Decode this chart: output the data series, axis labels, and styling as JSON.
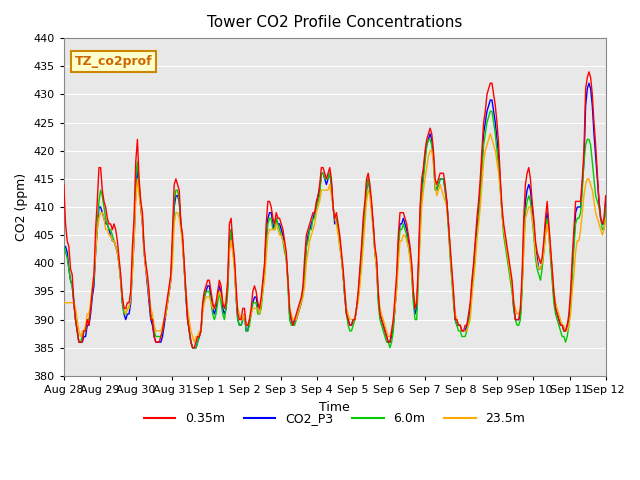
{
  "title": "Tower CO2 Profile Concentrations",
  "xlabel": "Time",
  "ylabel": "CO2 (ppm)",
  "ylim": [
    380,
    440
  ],
  "background_color": "#e8e8e8",
  "figure_bg": "#ffffff",
  "legend_box_label": "TZ_co2prof",
  "legend_box_text_color": "#cc6600",
  "legend_box_border_color": "#cc8800",
  "legend_box_bg": "#ffffcc",
  "series": [
    {
      "label": "0.35m",
      "color": "#ff0000"
    },
    {
      "label": "CO2_P3",
      "color": "#0000ff"
    },
    {
      "label": "6.0m",
      "color": "#00cc00"
    },
    {
      "label": "23.5m",
      "color": "#ffaa00"
    }
  ],
  "x_tick_labels": [
    "Aug 28",
    "Aug 29",
    "Aug 30",
    "Aug 31",
    "Sep 1",
    "Sep 2",
    "Sep 3",
    "Sep 4",
    "Sep 5",
    "Sep 6",
    "Sep 7",
    "Sep 8",
    "Sep 9",
    "Sep 10",
    "Sep 11",
    "Sep 12"
  ],
  "x_tick_positions": [
    0,
    1,
    2,
    3,
    4,
    5,
    6,
    7,
    8,
    9,
    10,
    11,
    12,
    13,
    14,
    15
  ],
  "yticks": [
    380,
    385,
    390,
    395,
    400,
    405,
    410,
    415,
    420,
    425,
    430,
    435,
    440
  ],
  "data_0.35m": [
    414,
    407,
    404,
    403,
    399,
    398,
    393,
    390,
    388,
    386,
    386,
    386,
    388,
    388,
    390,
    389,
    392,
    395,
    398,
    406,
    411,
    417,
    417,
    413,
    411,
    410,
    408,
    407,
    407,
    406,
    407,
    406,
    404,
    401,
    398,
    394,
    392,
    392,
    393,
    393,
    395,
    403,
    408,
    418,
    422,
    415,
    411,
    409,
    403,
    400,
    398,
    395,
    390,
    390,
    387,
    386,
    386,
    386,
    387,
    388,
    390,
    392,
    394,
    396,
    398,
    406,
    414,
    415,
    414,
    413,
    407,
    405,
    400,
    395,
    390,
    388,
    386,
    385,
    385,
    386,
    387,
    387,
    388,
    393,
    395,
    396,
    397,
    397,
    395,
    393,
    392,
    393,
    395,
    397,
    396,
    393,
    392,
    393,
    397,
    407,
    408,
    404,
    401,
    396,
    391,
    390,
    390,
    392,
    392,
    389,
    389,
    390,
    392,
    395,
    396,
    395,
    393,
    392,
    394,
    397,
    400,
    407,
    411,
    411,
    410,
    408,
    407,
    409,
    408,
    408,
    407,
    406,
    404,
    402,
    397,
    392,
    390,
    389,
    390,
    391,
    392,
    393,
    394,
    396,
    401,
    405,
    406,
    407,
    408,
    409,
    409,
    411,
    412,
    414,
    417,
    417,
    416,
    415,
    416,
    417,
    415,
    410,
    408,
    409,
    407,
    405,
    402,
    399,
    395,
    391,
    390,
    389,
    389,
    390,
    390,
    392,
    395,
    399,
    403,
    408,
    411,
    415,
    416,
    414,
    411,
    407,
    403,
    401,
    395,
    391,
    390,
    389,
    388,
    387,
    386,
    386,
    388,
    390,
    394,
    398,
    405,
    409,
    409,
    409,
    408,
    407,
    405,
    403,
    400,
    395,
    392,
    393,
    400,
    410,
    415,
    417,
    420,
    422,
    423,
    424,
    423,
    420,
    415,
    414,
    415,
    416,
    416,
    416,
    414,
    411,
    407,
    403,
    399,
    395,
    390,
    390,
    389,
    389,
    388,
    388,
    389,
    389,
    391,
    393,
    397,
    400,
    404,
    408,
    411,
    415,
    420,
    425,
    427,
    430,
    431,
    432,
    432,
    430,
    428,
    425,
    421,
    415,
    410,
    407,
    405,
    403,
    401,
    399,
    397,
    393,
    390,
    390,
    390,
    392,
    398,
    408,
    414,
    416,
    417,
    415,
    411,
    408,
    404,
    402,
    401,
    400,
    401,
    404,
    408,
    411,
    407,
    403,
    399,
    395,
    392,
    391,
    390,
    389,
    389,
    388,
    388,
    389,
    391,
    395,
    401,
    406,
    411,
    411,
    411,
    411,
    415,
    420,
    431,
    433,
    434,
    433,
    430,
    425,
    421,
    416,
    411,
    408,
    407,
    408,
    412
  ],
  "data_CO2_P3": [
    403,
    403,
    402,
    399,
    397,
    396,
    393,
    390,
    388,
    386,
    386,
    386,
    387,
    387,
    389,
    389,
    391,
    394,
    396,
    402,
    406,
    410,
    410,
    409,
    408,
    407,
    407,
    406,
    405,
    404,
    404,
    403,
    402,
    400,
    397,
    393,
    391,
    390,
    391,
    391,
    393,
    399,
    404,
    413,
    417,
    413,
    410,
    407,
    402,
    399,
    396,
    393,
    390,
    389,
    387,
    386,
    386,
    386,
    386,
    387,
    389,
    391,
    393,
    395,
    397,
    403,
    410,
    412,
    412,
    411,
    407,
    404,
    399,
    394,
    390,
    388,
    386,
    385,
    385,
    385,
    386,
    387,
    388,
    392,
    394,
    395,
    396,
    396,
    394,
    392,
    391,
    392,
    394,
    396,
    395,
    392,
    391,
    392,
    396,
    404,
    406,
    403,
    400,
    394,
    390,
    389,
    389,
    390,
    391,
    388,
    388,
    390,
    391,
    393,
    394,
    394,
    392,
    391,
    393,
    396,
    399,
    405,
    408,
    409,
    409,
    407,
    406,
    408,
    407,
    407,
    406,
    405,
    403,
    401,
    397,
    391,
    390,
    389,
    390,
    390,
    391,
    392,
    393,
    395,
    399,
    403,
    405,
    406,
    407,
    408,
    409,
    410,
    412,
    413,
    416,
    416,
    415,
    414,
    415,
    416,
    414,
    410,
    407,
    408,
    406,
    404,
    401,
    398,
    394,
    391,
    390,
    389,
    389,
    390,
    390,
    392,
    394,
    398,
    402,
    406,
    409,
    413,
    415,
    413,
    410,
    407,
    402,
    400,
    394,
    391,
    390,
    389,
    388,
    387,
    386,
    386,
    387,
    389,
    392,
    396,
    403,
    407,
    407,
    408,
    407,
    406,
    404,
    402,
    399,
    394,
    391,
    392,
    399,
    408,
    413,
    416,
    419,
    421,
    422,
    423,
    422,
    419,
    414,
    413,
    414,
    415,
    415,
    415,
    413,
    411,
    407,
    402,
    398,
    394,
    390,
    389,
    389,
    389,
    388,
    388,
    388,
    389,
    390,
    392,
    396,
    399,
    403,
    406,
    409,
    413,
    418,
    423,
    425,
    427,
    428,
    429,
    429,
    427,
    425,
    422,
    419,
    414,
    409,
    406,
    404,
    402,
    400,
    398,
    396,
    392,
    390,
    390,
    390,
    391,
    396,
    405,
    411,
    413,
    414,
    413,
    410,
    407,
    403,
    401,
    399,
    399,
    400,
    403,
    407,
    409,
    406,
    402,
    398,
    394,
    392,
    391,
    390,
    389,
    389,
    388,
    388,
    389,
    390,
    393,
    399,
    404,
    409,
    410,
    410,
    410,
    414,
    418,
    428,
    431,
    432,
    431,
    428,
    423,
    419,
    415,
    411,
    408,
    407,
    407,
    411
  ],
  "data_6.0m": [
    403,
    402,
    401,
    399,
    397,
    396,
    393,
    390,
    388,
    386,
    386,
    387,
    388,
    388,
    390,
    390,
    392,
    395,
    397,
    402,
    407,
    411,
    413,
    412,
    410,
    408,
    407,
    406,
    406,
    405,
    404,
    403,
    402,
    400,
    397,
    393,
    391,
    391,
    392,
    392,
    394,
    400,
    406,
    415,
    418,
    414,
    411,
    408,
    402,
    400,
    397,
    394,
    391,
    390,
    388,
    387,
    387,
    387,
    387,
    388,
    390,
    391,
    393,
    395,
    398,
    403,
    411,
    413,
    413,
    411,
    407,
    404,
    399,
    394,
    391,
    388,
    386,
    385,
    385,
    385,
    386,
    387,
    388,
    392,
    394,
    395,
    395,
    395,
    393,
    391,
    390,
    391,
    393,
    395,
    393,
    391,
    390,
    392,
    395,
    403,
    406,
    403,
    400,
    394,
    390,
    389,
    389,
    390,
    391,
    388,
    388,
    389,
    391,
    393,
    393,
    393,
    391,
    391,
    392,
    395,
    398,
    403,
    407,
    408,
    408,
    406,
    406,
    408,
    407,
    406,
    405,
    404,
    402,
    401,
    396,
    390,
    389,
    389,
    389,
    390,
    391,
    392,
    393,
    395,
    398,
    403,
    404,
    406,
    406,
    408,
    408,
    410,
    411,
    412,
    416,
    416,
    415,
    415,
    415,
    416,
    414,
    410,
    408,
    408,
    406,
    403,
    401,
    398,
    394,
    391,
    389,
    388,
    388,
    389,
    390,
    392,
    394,
    397,
    401,
    405,
    409,
    413,
    415,
    413,
    410,
    406,
    402,
    399,
    393,
    390,
    389,
    388,
    387,
    386,
    386,
    385,
    386,
    388,
    392,
    396,
    402,
    406,
    406,
    407,
    406,
    405,
    403,
    401,
    398,
    393,
    390,
    390,
    397,
    406,
    412,
    415,
    418,
    421,
    422,
    422,
    421,
    418,
    413,
    413,
    414,
    415,
    415,
    415,
    413,
    410,
    406,
    401,
    397,
    393,
    390,
    389,
    388,
    388,
    387,
    387,
    387,
    388,
    390,
    391,
    395,
    398,
    402,
    405,
    408,
    412,
    417,
    421,
    423,
    425,
    426,
    427,
    427,
    425,
    423,
    420,
    417,
    413,
    409,
    405,
    403,
    401,
    399,
    397,
    395,
    392,
    390,
    389,
    389,
    390,
    395,
    403,
    409,
    411,
    412,
    411,
    408,
    405,
    401,
    399,
    398,
    397,
    399,
    402,
    405,
    408,
    405,
    401,
    397,
    393,
    391,
    390,
    389,
    388,
    387,
    387,
    386,
    387,
    389,
    392,
    398,
    403,
    407,
    408,
    408,
    409,
    413,
    418,
    421,
    422,
    422,
    421,
    418,
    415,
    412,
    411,
    410,
    408,
    406,
    406,
    410
  ],
  "data_23.5m": [
    393,
    393,
    393,
    393,
    393,
    393,
    393,
    392,
    390,
    388,
    387,
    388,
    388,
    389,
    391,
    391,
    393,
    396,
    398,
    402,
    406,
    408,
    409,
    409,
    408,
    406,
    406,
    405,
    405,
    404,
    404,
    403,
    402,
    400,
    397,
    394,
    392,
    391,
    392,
    392,
    394,
    398,
    404,
    411,
    415,
    412,
    410,
    407,
    402,
    399,
    397,
    394,
    392,
    391,
    389,
    388,
    388,
    388,
    388,
    389,
    390,
    391,
    393,
    395,
    397,
    400,
    407,
    409,
    409,
    408,
    406,
    403,
    399,
    395,
    392,
    390,
    388,
    387,
    386,
    387,
    387,
    388,
    388,
    391,
    393,
    394,
    394,
    394,
    393,
    392,
    392,
    393,
    394,
    395,
    394,
    393,
    392,
    394,
    397,
    402,
    404,
    402,
    399,
    394,
    392,
    391,
    390,
    390,
    391,
    389,
    389,
    390,
    391,
    392,
    392,
    392,
    392,
    391,
    393,
    395,
    397,
    401,
    405,
    406,
    406,
    406,
    406,
    407,
    406,
    405,
    405,
    404,
    403,
    401,
    397,
    392,
    391,
    390,
    390,
    390,
    391,
    392,
    393,
    394,
    396,
    400,
    402,
    404,
    405,
    406,
    407,
    409,
    410,
    411,
    413,
    413,
    413,
    413,
    413,
    414,
    412,
    410,
    408,
    407,
    405,
    403,
    401,
    398,
    395,
    392,
    391,
    390,
    390,
    390,
    390,
    392,
    393,
    396,
    399,
    403,
    407,
    411,
    413,
    412,
    409,
    406,
    402,
    399,
    395,
    392,
    391,
    390,
    389,
    388,
    387,
    387,
    388,
    390,
    392,
    395,
    400,
    404,
    404,
    405,
    405,
    404,
    403,
    401,
    398,
    395,
    393,
    393,
    398,
    404,
    410,
    413,
    415,
    417,
    419,
    420,
    420,
    418,
    414,
    412,
    413,
    414,
    413,
    412,
    411,
    410,
    407,
    402,
    398,
    394,
    391,
    390,
    389,
    389,
    388,
    388,
    388,
    388,
    389,
    390,
    394,
    397,
    400,
    404,
    407,
    410,
    414,
    418,
    420,
    421,
    422,
    423,
    422,
    421,
    420,
    418,
    416,
    413,
    409,
    406,
    404,
    402,
    400,
    398,
    396,
    393,
    392,
    391,
    391,
    392,
    396,
    402,
    408,
    409,
    410,
    410,
    408,
    406,
    402,
    400,
    399,
    399,
    400,
    402,
    405,
    407,
    405,
    402,
    399,
    395,
    393,
    392,
    391,
    390,
    389,
    389,
    388,
    388,
    389,
    391,
    395,
    398,
    402,
    404,
    404,
    406,
    409,
    412,
    414,
    415,
    415,
    414,
    413,
    411,
    409,
    408,
    407,
    406,
    405,
    406,
    408
  ]
}
